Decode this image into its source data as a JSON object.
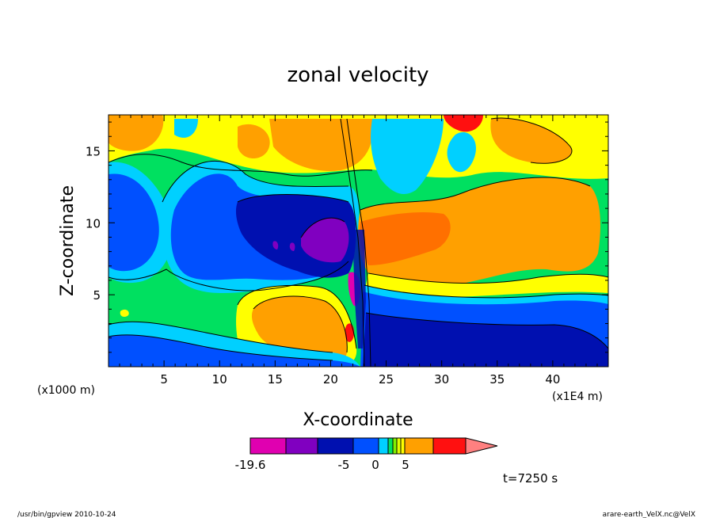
{
  "chart_data": {
    "type": "heatmap",
    "title": "zonal velocity",
    "xlabel": "X-coordinate",
    "ylabel": "Z-coordinate",
    "x_unit_note": "(x1E4 m)",
    "y_unit_note": "(x1000 m)",
    "xlim": [
      0,
      45
    ],
    "ylim": [
      0,
      17.5
    ],
    "x_ticks": [
      5,
      10,
      15,
      20,
      25,
      30,
      35,
      40
    ],
    "y_ticks": [
      5,
      10,
      15
    ],
    "colorbar": {
      "colors": [
        "#e000b0",
        "#8000c0",
        "#0010b0",
        "#0050ff",
        "#00d0ff",
        "#00e060",
        "#80f000",
        "#e0ff00",
        "#ffff00",
        "#ffa000",
        "#ff7000",
        "#ff1010"
      ],
      "over_color": "#ff8080",
      "tick_labels": [
        "-19.6",
        "-5",
        "0",
        "5"
      ],
      "tick_values": [
        -19.6,
        -5,
        0,
        5
      ]
    },
    "time_label": "t=7250 s",
    "regions": [
      {
        "name": "upper-left-orange",
        "level": "#ffa000"
      },
      {
        "name": "left-blue-core",
        "level": "#0050ff"
      },
      {
        "name": "central-dark-blue",
        "level": "#0010b0"
      },
      {
        "name": "purple-core",
        "level": "#8000c0"
      },
      {
        "name": "magenta-core",
        "level": "#e000b0"
      },
      {
        "name": "right-orange-upper",
        "level": "#ffa000"
      },
      {
        "name": "right-dark-orange",
        "level": "#ff7000"
      },
      {
        "name": "lower-right-dark-blue",
        "level": "#0010b0"
      },
      {
        "name": "lower-orange-lobe",
        "level": "#ffa000"
      },
      {
        "name": "red-spot",
        "level": "#ff1010"
      }
    ]
  },
  "footer": {
    "left": "/usr/bin/gpview   2010-10-24",
    "right": "arare-earth_VelX.nc@VelX"
  }
}
